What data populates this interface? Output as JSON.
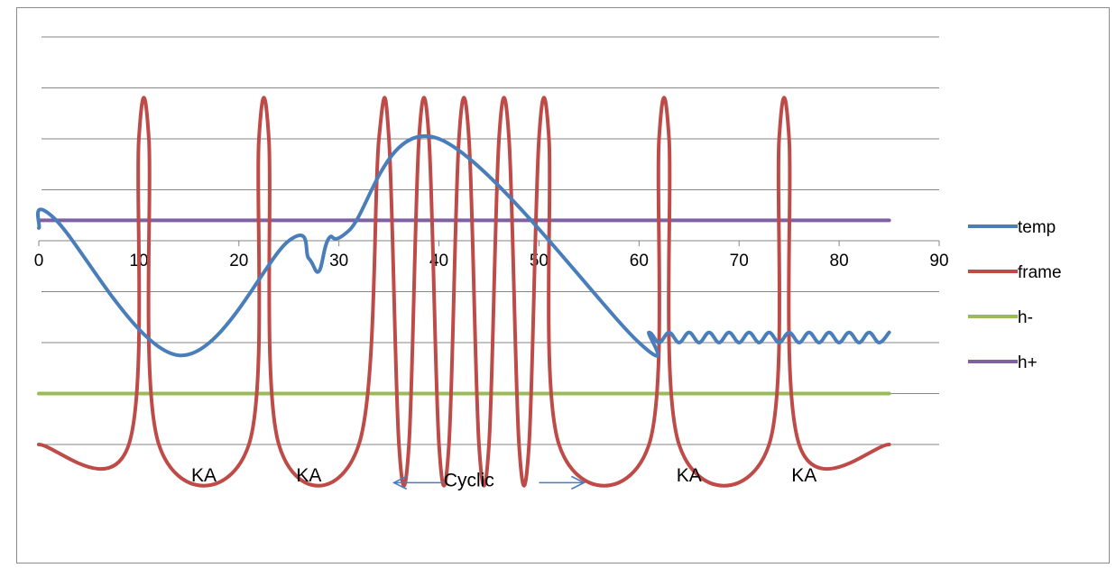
{
  "chart_data": {
    "type": "line",
    "title": "",
    "xlabel": "",
    "ylabel": "",
    "xlim": [
      0,
      90
    ],
    "x_ticks": [
      "0",
      "10",
      "20",
      "30",
      "40",
      "50",
      "60",
      "70",
      "80",
      "90"
    ],
    "y_range": [
      -4.5,
      4.5
    ],
    "y_gridlines": [
      4,
      3,
      2,
      1,
      0,
      -1,
      -2,
      -3,
      -4
    ],
    "y_tick_labels_shown": false,
    "grid": true,
    "legend_position": "right",
    "series": [
      {
        "name": "temp",
        "color": "#4a7ebb",
        "points": [
          [
            0,
            0.25
          ],
          [
            1.5,
            0.45
          ],
          [
            14,
            -2.25
          ],
          [
            25,
            0.0
          ],
          [
            27,
            -0.35
          ],
          [
            28,
            -0.6
          ],
          [
            29,
            0.05
          ],
          [
            31,
            0.2
          ],
          [
            40,
            2.0
          ],
          [
            60,
            -2.0
          ],
          [
            61,
            -1.8
          ],
          [
            62,
            -2.0
          ],
          [
            63,
            -1.8
          ],
          [
            64,
            -2.0
          ],
          [
            65,
            -1.8
          ],
          [
            66,
            -2.0
          ],
          [
            67,
            -1.8
          ],
          [
            68,
            -2.0
          ],
          [
            69,
            -1.8
          ],
          [
            70,
            -2.0
          ],
          [
            71,
            -1.8
          ],
          [
            72,
            -2.0
          ],
          [
            73,
            -1.8
          ],
          [
            74,
            -2.0
          ],
          [
            75,
            -1.8
          ],
          [
            76,
            -2.0
          ],
          [
            77,
            -1.8
          ],
          [
            78,
            -2.0
          ],
          [
            79,
            -1.8
          ],
          [
            80,
            -2.0
          ],
          [
            81,
            -1.8
          ],
          [
            82,
            -2.0
          ],
          [
            83,
            -1.8
          ],
          [
            84,
            -2.0
          ],
          [
            85,
            -1.8
          ]
        ]
      },
      {
        "name": "frame",
        "color": "#be4b48",
        "low": -4,
        "high": 2,
        "points": [
          [
            0,
            -4
          ],
          [
            9,
            -4
          ],
          [
            10,
            2
          ],
          [
            11,
            2
          ],
          [
            12,
            -4
          ],
          [
            21,
            -4
          ],
          [
            22,
            2
          ],
          [
            23,
            2
          ],
          [
            24,
            -4
          ],
          [
            32,
            -4
          ],
          [
            34,
            2
          ],
          [
            35,
            2
          ],
          [
            36,
            -4
          ],
          [
            37,
            -4
          ],
          [
            38,
            2
          ],
          [
            39,
            2
          ],
          [
            40,
            -4
          ],
          [
            41,
            -4
          ],
          [
            42,
            2
          ],
          [
            43,
            2
          ],
          [
            44,
            -4
          ],
          [
            45,
            -4
          ],
          [
            46,
            2
          ],
          [
            47,
            2
          ],
          [
            48,
            -4
          ],
          [
            49,
            -4
          ],
          [
            50,
            2
          ],
          [
            51,
            2
          ],
          [
            52,
            -4
          ],
          [
            61,
            -4
          ],
          [
            62,
            2
          ],
          [
            63,
            2
          ],
          [
            64,
            -4
          ],
          [
            73,
            -4
          ],
          [
            74,
            2
          ],
          [
            75,
            2
          ],
          [
            76,
            -4
          ],
          [
            85,
            -4
          ]
        ]
      },
      {
        "name": "h-",
        "color": "#9bbb59",
        "points": [
          [
            0,
            -3
          ],
          [
            85,
            -3
          ]
        ]
      },
      {
        "name": "h+",
        "color": "#7f60a2",
        "points": [
          [
            0,
            0.4
          ],
          [
            85,
            0.4
          ]
        ]
      }
    ],
    "annotations": [
      {
        "text": "KA",
        "x": 16.5,
        "y": -4.6
      },
      {
        "text": "KA",
        "x": 27,
        "y": -4.6
      },
      {
        "text": "Cyclic",
        "x": 43,
        "y": -4.7
      },
      {
        "text": "KA",
        "x": 65,
        "y": -4.6
      },
      {
        "text": "KA",
        "x": 76.5,
        "y": -4.6
      }
    ],
    "arrows": [
      {
        "direction": "left",
        "from_x": 40.5,
        "to_x": 35.5,
        "y": -4.75,
        "color": "#4a7ebb"
      },
      {
        "direction": "right",
        "from_x": 50,
        "to_x": 54.5,
        "y": -4.75,
        "color": "#4a7ebb"
      }
    ]
  }
}
